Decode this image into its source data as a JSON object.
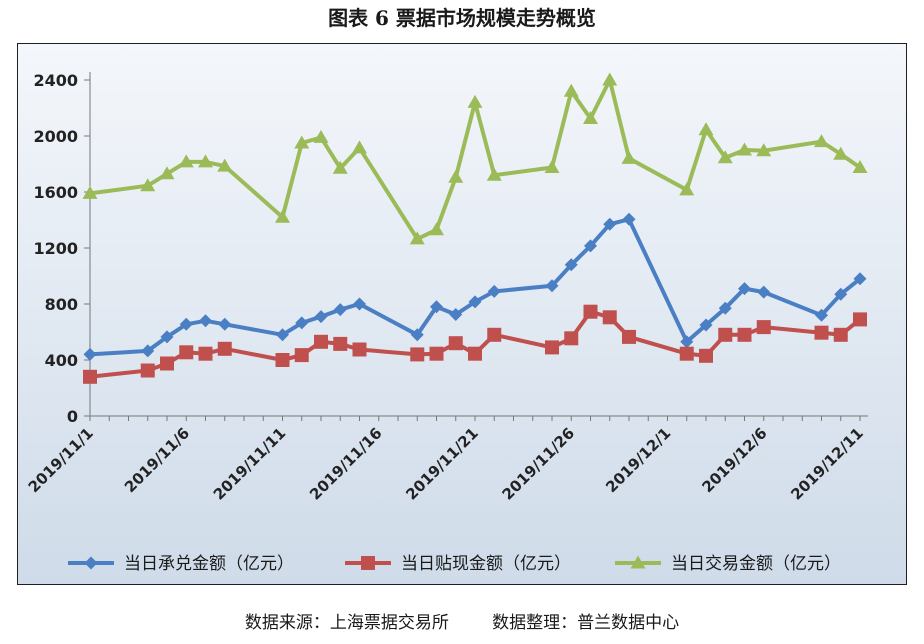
{
  "header": {
    "title": "图表 6  票据市场规模走势概览"
  },
  "footer": {
    "text": "数据来源：上海票据交易所        数据整理：普兰数据中心"
  },
  "chart_data": {
    "type": "line",
    "x_tick_labels": [
      "2019/11/1",
      "2019/11/6",
      "2019/11/11",
      "2019/11/16",
      "2019/11/21",
      "2019/11/26",
      "2019/12/1",
      "2019/12/6",
      "2019/12/11"
    ],
    "y_ticks": [
      0,
      400,
      800,
      1200,
      1600,
      2000,
      2400
    ],
    "ylim": [
      0,
      2400
    ],
    "xlim": [
      "2019/11/1",
      "2019/12/11"
    ],
    "grid": false,
    "legend_position": "bottom",
    "series": [
      {
        "name": "当日承兑金额（亿元）",
        "color": "#4a7fc4",
        "marker": "diamond",
        "points": [
          [
            "2019/11/1",
            440
          ],
          [
            "2019/11/4",
            465
          ],
          [
            "2019/11/5",
            565
          ],
          [
            "2019/11/6",
            655
          ],
          [
            "2019/11/7",
            680
          ],
          [
            "2019/11/8",
            655
          ],
          [
            "2019/11/11",
            580
          ],
          [
            "2019/11/12",
            665
          ],
          [
            "2019/11/13",
            710
          ],
          [
            "2019/11/14",
            760
          ],
          [
            "2019/11/15",
            800
          ],
          [
            "2019/11/18",
            580
          ],
          [
            "2019/11/19",
            780
          ],
          [
            "2019/11/20",
            725
          ],
          [
            "2019/11/21",
            815
          ],
          [
            "2019/11/22",
            890
          ],
          [
            "2019/11/25",
            930
          ],
          [
            "2019/11/26",
            1080
          ],
          [
            "2019/11/27",
            1215
          ],
          [
            "2019/11/28",
            1370
          ],
          [
            "2019/11/29",
            1405
          ],
          [
            "2019/12/2",
            530
          ],
          [
            "2019/12/3",
            650
          ],
          [
            "2019/12/4",
            770
          ],
          [
            "2019/12/5",
            910
          ],
          [
            "2019/12/6",
            885
          ],
          [
            "2019/12/9",
            720
          ],
          [
            "2019/12/10",
            870
          ],
          [
            "2019/12/11",
            980
          ]
        ]
      },
      {
        "name": "当日贴现金额（亿元）",
        "color": "#c0504d",
        "marker": "square",
        "points": [
          [
            "2019/11/1",
            280
          ],
          [
            "2019/11/4",
            325
          ],
          [
            "2019/11/5",
            375
          ],
          [
            "2019/11/6",
            455
          ],
          [
            "2019/11/7",
            445
          ],
          [
            "2019/11/8",
            480
          ],
          [
            "2019/11/11",
            400
          ],
          [
            "2019/11/12",
            435
          ],
          [
            "2019/11/13",
            530
          ],
          [
            "2019/11/14",
            515
          ],
          [
            "2019/11/15",
            475
          ],
          [
            "2019/11/18",
            440
          ],
          [
            "2019/11/19",
            445
          ],
          [
            "2019/11/20",
            520
          ],
          [
            "2019/11/21",
            445
          ],
          [
            "2019/11/22",
            580
          ],
          [
            "2019/11/25",
            490
          ],
          [
            "2019/11/26",
            555
          ],
          [
            "2019/11/27",
            745
          ],
          [
            "2019/11/28",
            705
          ],
          [
            "2019/11/29",
            565
          ],
          [
            "2019/12/2",
            445
          ],
          [
            "2019/12/3",
            430
          ],
          [
            "2019/12/4",
            580
          ],
          [
            "2019/12/5",
            580
          ],
          [
            "2019/12/6",
            635
          ],
          [
            "2019/12/9",
            595
          ],
          [
            "2019/12/10",
            580
          ],
          [
            "2019/12/11",
            690
          ]
        ]
      },
      {
        "name": "当日交易金额（亿元）",
        "color": "#9bbb59",
        "marker": "triangle",
        "points": [
          [
            "2019/11/1",
            1590
          ],
          [
            "2019/11/4",
            1645
          ],
          [
            "2019/11/5",
            1730
          ],
          [
            "2019/11/6",
            1815
          ],
          [
            "2019/11/7",
            1815
          ],
          [
            "2019/11/8",
            1785
          ],
          [
            "2019/11/11",
            1420
          ],
          [
            "2019/11/12",
            1950
          ],
          [
            "2019/11/13",
            1990
          ],
          [
            "2019/11/14",
            1770
          ],
          [
            "2019/11/15",
            1915
          ],
          [
            "2019/11/18",
            1265
          ],
          [
            "2019/11/19",
            1330
          ],
          [
            "2019/11/20",
            1705
          ],
          [
            "2019/11/21",
            2240
          ],
          [
            "2019/11/22",
            1720
          ],
          [
            "2019/11/25",
            1775
          ],
          [
            "2019/11/26",
            2320
          ],
          [
            "2019/11/27",
            2125
          ],
          [
            "2019/11/28",
            2400
          ],
          [
            "2019/11/29",
            1840
          ],
          [
            "2019/12/2",
            1615
          ],
          [
            "2019/12/3",
            2045
          ],
          [
            "2019/12/4",
            1845
          ],
          [
            "2019/12/5",
            1900
          ],
          [
            "2019/12/6",
            1895
          ],
          [
            "2019/12/9",
            1960
          ],
          [
            "2019/12/10",
            1870
          ],
          [
            "2019/12/11",
            1775
          ]
        ]
      }
    ]
  }
}
